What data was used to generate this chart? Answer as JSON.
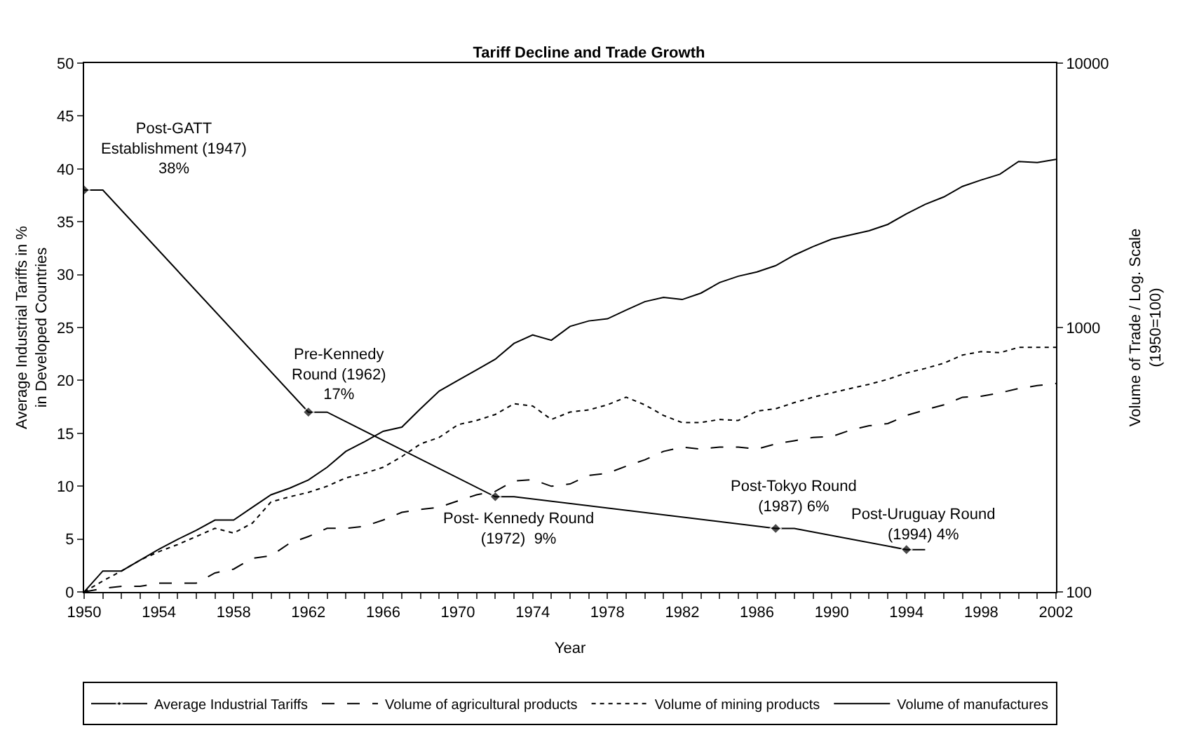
{
  "chart_data": {
    "type": "line",
    "title": "Tariff Decline and Trade Growth",
    "xlabel": "Year",
    "ylabel": "Average Industrial Tariffs in %\nin Developed Countries",
    "y2label": "Volume of Trade / Log. Scale\n(1950=100)",
    "x": [
      1950,
      1951,
      1952,
      1953,
      1954,
      1955,
      1956,
      1957,
      1958,
      1959,
      1960,
      1961,
      1962,
      1963,
      1964,
      1965,
      1966,
      1967,
      1968,
      1969,
      1970,
      1971,
      1972,
      1973,
      1974,
      1975,
      1976,
      1977,
      1978,
      1979,
      1980,
      1981,
      1982,
      1983,
      1984,
      1985,
      1986,
      1987,
      1988,
      1989,
      1990,
      1991,
      1992,
      1993,
      1994,
      1995,
      1996,
      1997,
      1998,
      1999,
      2000,
      2001,
      2002
    ],
    "series": [
      {
        "name": "Average Industrial Tariffs",
        "color": "#000000",
        "axis": "y",
        "marker": "diamond",
        "line_style": "solid",
        "x": [
          1950,
          1951,
          1962,
          1963,
          1972,
          1973,
          1987,
          1988,
          1994,
          1995
        ],
        "values": [
          38,
          38,
          17,
          17,
          9,
          9,
          6,
          6,
          4,
          4
        ]
      },
      {
        "name": "Volume of agricultural products",
        "color": "#000000",
        "axis": "y2",
        "marker": "none",
        "line_style": "dashed",
        "values": [
          100,
          103,
          105,
          105,
          108,
          108,
          108,
          118,
          122,
          134,
          137,
          153,
          162,
          174,
          174,
          177,
          187,
          200,
          205,
          209,
          221,
          233,
          240,
          263,
          266,
          251,
          256,
          276,
          281,
          299,
          316,
          340,
          353,
          347,
          353,
          353,
          347,
          363,
          373,
          384,
          387,
          409,
          425,
          433,
          465,
          488,
          510,
          545,
          550,
          566,
          588,
          603,
          614
        ]
      },
      {
        "name": "Volume of mining products",
        "color": "#000000",
        "axis": "y2",
        "marker": "none",
        "line_style": "dotted",
        "values": [
          100,
          110,
          120,
          132,
          142,
          151,
          162,
          174,
          167,
          182,
          219,
          229,
          238,
          251,
          270,
          281,
          296,
          325,
          363,
          384,
          429,
          445,
          469,
          515,
          505,
          449,
          479,
          488,
          510,
          545,
          510,
          465,
          437,
          437,
          449,
          445,
          483,
          493,
          520,
          545,
          566,
          588,
          610,
          637,
          673,
          700,
          733,
          787,
          811,
          803,
          841,
          841,
          841
        ]
      },
      {
        "name": "Volume of manufactures",
        "color": "#000000",
        "axis": "y2",
        "marker": "none",
        "line_style": "solid",
        "values": [
          100,
          120,
          120,
          132,
          145,
          158,
          171,
          187,
          187,
          209,
          233,
          247,
          265,
          296,
          340,
          370,
          405,
          420,
          493,
          575,
          631,
          692,
          759,
          871,
          937,
          895,
          1010,
          1059,
          1079,
          1164,
          1253,
          1300,
          1276,
          1349,
          1479,
          1563,
          1622,
          1714,
          1879,
          2023,
          2158,
          2239,
          2323,
          2455,
          2692,
          2924,
          3119,
          3420,
          3614,
          3802,
          4246,
          4207,
          4325
        ]
      }
    ],
    "xlim": [
      1950,
      2002
    ],
    "xticks": [
      1950,
      {
        "value": 1951,
        "label": null
      },
      {
        "value": 1952,
        "label": null
      },
      {
        "value": 1953,
        "label": null
      },
      1954,
      {
        "value": 1955,
        "label": null
      },
      {
        "value": 1956,
        "label": null
      },
      {
        "value": 1957,
        "label": null
      },
      1958,
      {
        "value": 1959,
        "label": null
      },
      {
        "value": 1960,
        "label": null
      },
      {
        "value": 1961,
        "label": null
      },
      1962,
      {
        "value": 1963,
        "label": null
      },
      {
        "value": 1964,
        "label": null
      },
      {
        "value": 1965,
        "label": null
      },
      1966,
      {
        "value": 1967,
        "label": null
      },
      {
        "value": 1968,
        "label": null
      },
      {
        "value": 1969,
        "label": null
      },
      1970,
      {
        "value": 1971,
        "label": null
      },
      {
        "value": 1972,
        "label": null
      },
      {
        "value": 1973,
        "label": null
      },
      1974,
      {
        "value": 1975,
        "label": null
      },
      {
        "value": 1976,
        "label": null
      },
      {
        "value": 1977,
        "label": null
      },
      1978,
      {
        "value": 1979,
        "label": null
      },
      {
        "value": 1980,
        "label": null
      },
      {
        "value": 1981,
        "label": null
      },
      1982,
      {
        "value": 1983,
        "label": null
      },
      {
        "value": 1984,
        "label": null
      },
      {
        "value": 1985,
        "label": null
      },
      1986,
      {
        "value": 1987,
        "label": null
      },
      {
        "value": 1988,
        "label": null
      },
      {
        "value": 1989,
        "label": null
      },
      1990,
      {
        "value": 1991,
        "label": null
      },
      {
        "value": 1992,
        "label": null
      },
      {
        "value": 1993,
        "label": null
      },
      1994,
      {
        "value": 1995,
        "label": null
      },
      {
        "value": 1996,
        "label": null
      },
      {
        "value": 1997,
        "label": null
      },
      1998,
      {
        "value": 1999,
        "label": null
      },
      {
        "value": 2000,
        "label": null
      },
      {
        "value": 2001,
        "label": null
      },
      2002
    ],
    "ylim": [
      0,
      50
    ],
    "yticks": [
      0,
      5,
      10,
      15,
      20,
      25,
      30,
      35,
      40,
      45,
      50
    ],
    "y2lim": [
      100,
      10000
    ],
    "y2ticks": [
      100,
      1000,
      10000
    ],
    "log": "y2",
    "legend": "bottom",
    "annotations": [
      {
        "text": "Post-GATT\nEstablishment (1947)\n38%",
        "x": 1950,
        "y": 38
      },
      {
        "text": "Pre-Kennedy\nRound (1962)\n17%",
        "x": 1962,
        "y": 17
      },
      {
        "text": "Post- Kennedy Round\n(1972)  9%",
        "x": 1972,
        "y": 9
      },
      {
        "text": "Post-Tokyo Round\n(1987) 6%",
        "x": 1987,
        "y": 6
      },
      {
        "text": "Post-Uruguay Round\n(1994) 4%",
        "x": 1994,
        "y": 4
      }
    ]
  }
}
